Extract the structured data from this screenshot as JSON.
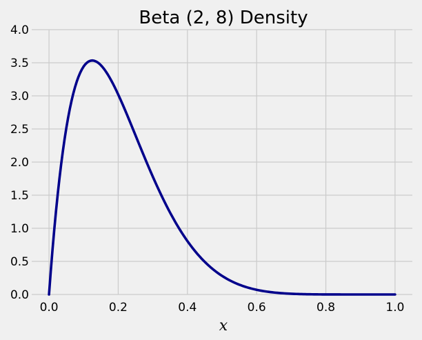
{
  "chart_data": {
    "type": "line",
    "title": "Beta (2, 8) Density",
    "xlabel": "x",
    "ylabel": "",
    "xlim": [
      -0.05,
      1.05
    ],
    "ylim": [
      0,
      4.0
    ],
    "xticks": [
      0.0,
      0.2,
      0.4,
      0.6,
      0.8,
      1.0
    ],
    "xtick_labels": [
      "0.0",
      "0.2",
      "0.4",
      "0.6",
      "0.8",
      "1.0"
    ],
    "yticks": [
      0.0,
      0.5,
      1.0,
      1.5,
      2.0,
      2.5,
      3.0,
      3.5,
      4.0
    ],
    "ytick_labels": [
      "0.0",
      "0.5",
      "1.0",
      "1.5",
      "2.0",
      "2.5",
      "3.0",
      "3.5",
      "4.0"
    ],
    "grid": true,
    "series": [
      {
        "color": "#00008b",
        "x": [
          0.0,
          0.025,
          0.05,
          0.075,
          0.1,
          0.125,
          0.15,
          0.175,
          0.2,
          0.25,
          0.3,
          0.35,
          0.4,
          0.45,
          0.5,
          0.55,
          0.6,
          0.65,
          0.7,
          0.8,
          0.9,
          1.0
        ],
        "y": [
          0.0,
          2.26,
          3.14,
          3.45,
          3.44,
          3.54,
          3.52,
          3.38,
          3.02,
          2.4,
          1.77,
          1.21,
          0.76,
          0.45,
          0.25,
          0.13,
          0.06,
          0.02,
          0.01,
          0.0,
          0.0,
          0.0
        ]
      }
    ]
  }
}
